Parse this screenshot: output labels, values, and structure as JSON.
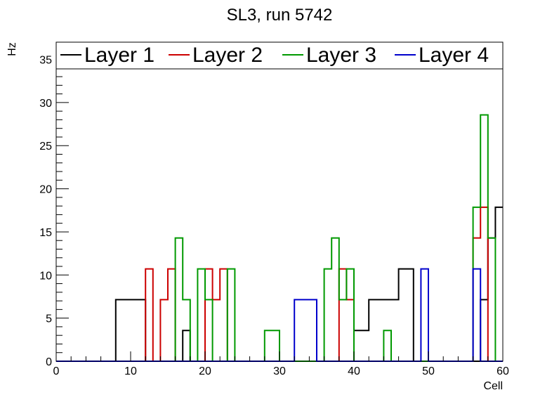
{
  "chart_data": {
    "type": "histogram",
    "title": "SL3, run 5742",
    "xlabel": "Cell",
    "ylabel": "Hz",
    "xlim": [
      0,
      60
    ],
    "ylim": [
      0,
      37
    ],
    "bin_width": 1,
    "x_ticks": [
      0,
      10,
      20,
      30,
      40,
      50,
      60
    ],
    "y_ticks": [
      0,
      5,
      10,
      15,
      20,
      25,
      30,
      35
    ],
    "grid": false,
    "legend_position": "top",
    "series": [
      {
        "name": "Layer 1",
        "color": "#000000",
        "values": [
          0,
          0,
          0,
          0,
          0,
          0,
          0,
          0,
          7.14,
          7.14,
          7.14,
          7.14,
          0,
          0,
          0,
          0,
          0,
          3.57,
          0,
          0,
          0,
          0,
          0,
          0,
          0,
          0,
          0,
          0,
          0,
          0,
          0,
          0,
          0,
          0,
          0,
          0,
          0,
          0,
          0,
          0,
          3.57,
          3.57,
          7.14,
          7.14,
          7.14,
          7.14,
          10.71,
          10.71,
          0,
          0,
          0,
          0,
          0,
          0,
          0,
          0,
          0,
          7.14,
          14.29,
          17.86
        ]
      },
      {
        "name": "Layer 2",
        "color": "#cc0000",
        "values": [
          0,
          0,
          0,
          0,
          0,
          0,
          0,
          0,
          0,
          0,
          0,
          0,
          10.71,
          0,
          7.14,
          10.71,
          0,
          0,
          0,
          0,
          10.71,
          7.14,
          10.71,
          0,
          0,
          0,
          0,
          0,
          0,
          0,
          0,
          0,
          0,
          0,
          0,
          0,
          0,
          0,
          10.71,
          7.14,
          0,
          0,
          0,
          0,
          0,
          0,
          0,
          0,
          0,
          0,
          0,
          0,
          0,
          0,
          0,
          0,
          14.29,
          17.86,
          0,
          0
        ]
      },
      {
        "name": "Layer 3",
        "color": "#009900",
        "values": [
          0,
          0,
          0,
          0,
          0,
          0,
          0,
          0,
          0,
          0,
          0,
          0,
          0,
          0,
          0,
          0,
          14.29,
          7.14,
          0,
          10.71,
          7.14,
          0,
          0,
          10.71,
          0,
          0,
          0,
          0,
          3.57,
          3.57,
          0,
          0,
          0,
          0,
          0,
          0,
          10.71,
          14.29,
          7.14,
          10.71,
          0,
          0,
          0,
          0,
          3.57,
          0,
          0,
          0,
          0,
          0,
          0,
          0,
          0,
          0,
          0,
          0,
          17.86,
          28.57,
          14.29,
          0
        ]
      },
      {
        "name": "Layer 4",
        "color": "#0000cc",
        "values": [
          0,
          0,
          0,
          0,
          0,
          0,
          0,
          0,
          0,
          0,
          0,
          0,
          0,
          0,
          0,
          0,
          0,
          0,
          0,
          0,
          0,
          0,
          0,
          0,
          0,
          0,
          0,
          0,
          0,
          0,
          0,
          0,
          7.14,
          7.14,
          7.14,
          0,
          0,
          0,
          0,
          0,
          0,
          0,
          0,
          0,
          0,
          0,
          0,
          0,
          0,
          10.71,
          0,
          0,
          0,
          0,
          0,
          0,
          10.71,
          0,
          0,
          0
        ]
      }
    ]
  }
}
